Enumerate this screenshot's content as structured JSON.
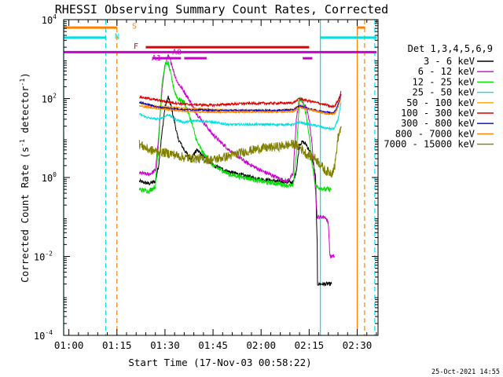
{
  "chart_data": {
    "type": "line",
    "title": "RHESSI Observing Summary Count Rates, Corrected",
    "xlabel": "Start Time (17-Nov-03 00:58:22)",
    "ylabel": "Corrected Count Rate (s",
    "ylabel_sup1": "-1",
    "ylabel_mid": " detector",
    "ylabel_sup2": "-1",
    "ylabel_end": ")",
    "y_scale": "log",
    "ylim": [
      0.0001,
      10000
    ],
    "xlim_minutes": [
      58.37,
      156.5
    ],
    "x_ticks": [
      {
        "label": "01:00",
        "minutes": 60
      },
      {
        "label": "01:15",
        "minutes": 75
      },
      {
        "label": "01:30",
        "minutes": 90
      },
      {
        "label": "01:45",
        "minutes": 105
      },
      {
        "label": "02:00",
        "minutes": 120
      },
      {
        "label": "02:15",
        "minutes": 135
      },
      {
        "label": "02:30",
        "minutes": 150
      }
    ],
    "y_ticks": [
      {
        "mant": "10",
        "exp": "-4",
        "value": 0.0001
      },
      {
        "mant": "10",
        "exp": "-2",
        "value": 0.01
      },
      {
        "mant": "10",
        "exp": "0",
        "value": 1
      },
      {
        "mant": "10",
        "exp": "2",
        "value": 100
      },
      {
        "mant": "10",
        "exp": "4",
        "value": 10000
      }
    ],
    "legend_title": "Det 1,3,4,5,6,9",
    "legend_position": "right",
    "footer_date": "25-Oct-2021 14:55",
    "series": [
      {
        "name": "3 - 6 keV",
        "color": "#000000",
        "jitter": 0.05,
        "points": [
          [
            82,
            0.8
          ],
          [
            85,
            0.7
          ],
          [
            87,
            0.8
          ],
          [
            88,
            2
          ],
          [
            89,
            12
          ],
          [
            90,
            60
          ],
          [
            91,
            110
          ],
          [
            92,
            60
          ],
          [
            93,
            25
          ],
          [
            94,
            10
          ],
          [
            96,
            5
          ],
          [
            98,
            3
          ],
          [
            100,
            5
          ],
          [
            102,
            3.5
          ],
          [
            105,
            2
          ],
          [
            110,
            1.4
          ],
          [
            115,
            1.1
          ],
          [
            120,
            0.9
          ],
          [
            125,
            0.8
          ],
          [
            130,
            0.75
          ],
          [
            131,
            1.5
          ],
          [
            132,
            7
          ],
          [
            133,
            8
          ],
          [
            134,
            7
          ],
          [
            135,
            5
          ],
          [
            136,
            3
          ],
          [
            137,
            1
          ],
          [
            137.5,
            0.02
          ],
          [
            137.6,
            0.002
          ],
          [
            142,
            0.002
          ]
        ]
      },
      {
        "name": "6 - 12 keV",
        "color": "#cc00cc",
        "jitter": 0.05,
        "points": [
          [
            82,
            1.3
          ],
          [
            85,
            1.2
          ],
          [
            87,
            1.5
          ],
          [
            88,
            10
          ],
          [
            89,
            150
          ],
          [
            90,
            700
          ],
          [
            91,
            1200
          ],
          [
            92,
            800
          ],
          [
            93,
            400
          ],
          [
            94,
            250
          ],
          [
            96,
            150
          ],
          [
            98,
            80
          ],
          [
            100,
            40
          ],
          [
            102,
            25
          ],
          [
            105,
            12
          ],
          [
            110,
            5
          ],
          [
            115,
            2.5
          ],
          [
            120,
            1.5
          ],
          [
            125,
            1.0
          ],
          [
            128,
            0.8
          ],
          [
            130,
            1.2
          ],
          [
            131,
            30
          ],
          [
            132,
            100
          ],
          [
            133,
            80
          ],
          [
            134,
            60
          ],
          [
            135,
            30
          ],
          [
            136,
            6
          ],
          [
            137,
            0.5
          ],
          [
            137.5,
            0.1
          ],
          [
            140,
            0.1
          ],
          [
            141,
            0.07
          ],
          [
            141.5,
            0.01
          ],
          [
            143,
            0.01
          ]
        ]
      },
      {
        "name": "12 - 25 keV",
        "color": "#00e000",
        "jitter": 0.06,
        "points": [
          [
            82,
            0.5
          ],
          [
            85,
            0.45
          ],
          [
            87,
            0.6
          ],
          [
            88,
            8
          ],
          [
            89,
            200
          ],
          [
            90,
            700
          ],
          [
            91,
            800
          ],
          [
            92,
            350
          ],
          [
            93,
            150
          ],
          [
            94,
            100
          ],
          [
            96,
            80
          ],
          [
            98,
            30
          ],
          [
            100,
            8
          ],
          [
            102,
            4
          ],
          [
            105,
            2
          ],
          [
            110,
            1.2
          ],
          [
            115,
            1.0
          ],
          [
            120,
            0.8
          ],
          [
            125,
            0.7
          ],
          [
            130,
            0.6
          ],
          [
            131,
            4
          ],
          [
            132,
            100
          ],
          [
            133,
            90
          ],
          [
            134,
            40
          ],
          [
            135,
            12
          ],
          [
            136,
            2
          ],
          [
            137,
            0.6
          ],
          [
            140,
            0.5
          ],
          [
            142,
            0.5
          ]
        ]
      },
      {
        "name": "25 - 50 keV",
        "color": "#00e0e0",
        "jitter": 0.03,
        "points": [
          [
            82,
            40
          ],
          [
            85,
            32
          ],
          [
            88,
            30
          ],
          [
            90,
            35
          ],
          [
            91,
            40
          ],
          [
            93,
            30
          ],
          [
            96,
            25
          ],
          [
            100,
            28
          ],
          [
            105,
            25
          ],
          [
            110,
            22
          ],
          [
            115,
            22
          ],
          [
            120,
            22
          ],
          [
            125,
            22
          ],
          [
            130,
            22
          ],
          [
            132,
            25
          ],
          [
            135,
            22
          ],
          [
            138,
            20
          ],
          [
            140,
            18
          ],
          [
            142,
            17
          ],
          [
            143,
            18
          ],
          [
            144,
            30
          ],
          [
            145,
            80
          ]
        ]
      },
      {
        "name": "50 - 100 keV",
        "color": "#ffa000",
        "jitter": 0.03,
        "points": [
          [
            82,
            75
          ],
          [
            85,
            68
          ],
          [
            88,
            62
          ],
          [
            92,
            60
          ],
          [
            96,
            55
          ],
          [
            100,
            55
          ],
          [
            105,
            52
          ],
          [
            110,
            50
          ],
          [
            115,
            50
          ],
          [
            120,
            50
          ],
          [
            125,
            50
          ],
          [
            130,
            52
          ],
          [
            132,
            70
          ],
          [
            134,
            55
          ],
          [
            137,
            50
          ],
          [
            140,
            45
          ],
          [
            142,
            42
          ],
          [
            143,
            45
          ],
          [
            144,
            60
          ],
          [
            145,
            110
          ]
        ]
      },
      {
        "name": "100 - 300 keV",
        "color": "#dd0000",
        "jitter": 0.03,
        "points": [
          [
            82,
            110
          ],
          [
            85,
            100
          ],
          [
            88,
            90
          ],
          [
            92,
            80
          ],
          [
            96,
            72
          ],
          [
            100,
            70
          ],
          [
            105,
            68
          ],
          [
            110,
            72
          ],
          [
            115,
            75
          ],
          [
            120,
            76
          ],
          [
            125,
            76
          ],
          [
            130,
            78
          ],
          [
            132,
            100
          ],
          [
            134,
            90
          ],
          [
            137,
            80
          ],
          [
            140,
            70
          ],
          [
            142,
            62
          ],
          [
            143,
            65
          ],
          [
            144,
            90
          ],
          [
            145,
            150
          ]
        ]
      },
      {
        "name": "300 - 800 keV",
        "color": "#0000cc",
        "jitter": 0.02,
        "points": [
          [
            82,
            80
          ],
          [
            85,
            70
          ],
          [
            88,
            60
          ],
          [
            92,
            56
          ],
          [
            96,
            52
          ],
          [
            100,
            52
          ],
          [
            105,
            50
          ],
          [
            110,
            50
          ],
          [
            115,
            50
          ],
          [
            120,
            50
          ],
          [
            125,
            50
          ],
          [
            130,
            52
          ],
          [
            132,
            65
          ],
          [
            134,
            58
          ],
          [
            137,
            50
          ],
          [
            140,
            46
          ],
          [
            142,
            44
          ],
          [
            143,
            47
          ],
          [
            144,
            70
          ],
          [
            145,
            130
          ]
        ]
      },
      {
        "name": "800 - 7000 keV",
        "color": "#ff8000",
        "jitter": 0.02,
        "points": [
          [
            82,
            65
          ],
          [
            85,
            60
          ],
          [
            88,
            56
          ],
          [
            92,
            52
          ],
          [
            96,
            48
          ],
          [
            100,
            46
          ],
          [
            105,
            45
          ],
          [
            110,
            46
          ],
          [
            115,
            46
          ],
          [
            120,
            46
          ],
          [
            125,
            46
          ],
          [
            130,
            47
          ],
          [
            132,
            60
          ],
          [
            134,
            55
          ],
          [
            137,
            48
          ],
          [
            140,
            42
          ],
          [
            142,
            40
          ],
          [
            143,
            42
          ],
          [
            144,
            60
          ],
          [
            145,
            120
          ]
        ]
      },
      {
        "name": "7000 - 15000 keV",
        "color": "#808000",
        "jitter": 0.12,
        "points": [
          [
            82,
            7
          ],
          [
            85,
            5
          ],
          [
            88,
            4.5
          ],
          [
            92,
            4
          ],
          [
            96,
            3.2
          ],
          [
            100,
            3
          ],
          [
            105,
            2.8
          ],
          [
            110,
            3.5
          ],
          [
            115,
            4.5
          ],
          [
            120,
            5.5
          ],
          [
            125,
            6
          ],
          [
            130,
            7
          ],
          [
            132,
            6
          ],
          [
            134,
            4
          ],
          [
            137,
            3
          ],
          [
            140,
            1.5
          ],
          [
            142,
            1.3
          ],
          [
            143,
            2
          ],
          [
            144,
            10
          ],
          [
            145,
            20
          ]
        ]
      }
    ],
    "flags": [
      {
        "label": "S",
        "color": "#ff8000",
        "y_label": 6800,
        "y": 6300,
        "segments": [
          [
            58.37,
            75
          ],
          [
            150,
            152.5
          ]
        ]
      },
      {
        "label": "N",
        "color": "#00e0e0",
        "y_label": 3700,
        "y": 3500,
        "segments": [
          [
            58.37,
            71.5
          ],
          [
            138.5,
            156
          ]
        ]
      },
      {
        "label": "F",
        "color": "#dd0000",
        "y_label": 2100,
        "y": 2000,
        "segments": [
          [
            84,
            135
          ]
        ]
      },
      {
        "label": "A0",
        "color": "#cc00cc",
        "y_label": 1500,
        "y": 1500,
        "segments": [
          [
            58.37,
            156
          ],
          [
            94,
            94.3
          ]
        ]
      },
      {
        "label": "A1",
        "color": "#cc00cc",
        "y_label": 1050,
        "y": 1050,
        "segments": [
          [
            86,
            95
          ],
          [
            96,
            103
          ],
          [
            133,
            136
          ]
        ]
      }
    ],
    "vlines": [
      {
        "minutes": 58.37,
        "color": "#00e0e0",
        "style": "solid"
      },
      {
        "minutes": 71.5,
        "color": "#00e0e0",
        "style": "dashed"
      },
      {
        "minutes": 75,
        "color": "#ff8000",
        "style": "dashed"
      },
      {
        "minutes": 138.5,
        "color": "#00e0e0",
        "style": "solid"
      },
      {
        "minutes": 150,
        "color": "#ff8000",
        "style": "solid"
      },
      {
        "minutes": 152.3,
        "color": "#ff8000",
        "style": "dashed"
      },
      {
        "minutes": 155.5,
        "color": "#00e0e0",
        "style": "dashed"
      }
    ]
  }
}
